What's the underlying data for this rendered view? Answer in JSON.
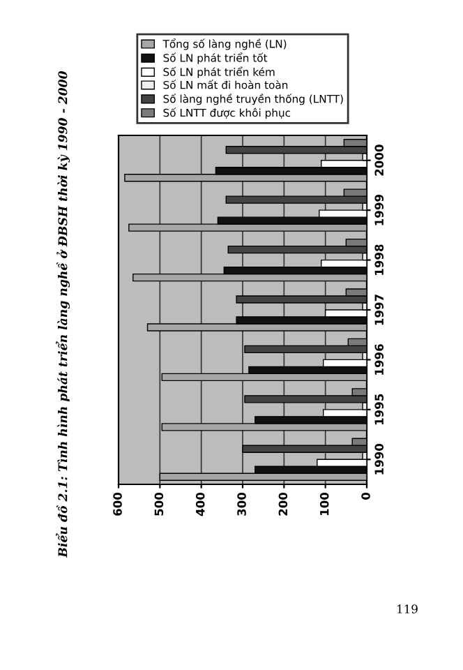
{
  "chart_data": {
    "type": "bar",
    "orientation": "horizontal",
    "title": "Biểu đồ 2.1: Tình hình phát triển làng nghề ở ĐBSH thời kỳ 1990 - 2000",
    "categories": [
      "2000",
      "1999",
      "1998",
      "1997",
      "1996",
      "1995",
      "1990"
    ],
    "series": [
      {
        "name": "Tổng số làng nghề (LN)",
        "color": "#a6a6a6",
        "values": [
          585,
          575,
          565,
          530,
          495,
          495,
          500
        ]
      },
      {
        "name": "Số LN phát triển tốt",
        "color": "#111111",
        "values": [
          365,
          360,
          345,
          315,
          285,
          270,
          270
        ]
      },
      {
        "name": "Số LN phát triển kém",
        "color": "#ffffff",
        "values": [
          110,
          115,
          110,
          100,
          105,
          105,
          120
        ]
      },
      {
        "name": "Số LN mất đi hoàn toàn",
        "color": "#eeeeee",
        "values": [
          10,
          10,
          10,
          10,
          10,
          10,
          10
        ]
      },
      {
        "name": "Số làng nghề truyền thống (LNTT)",
        "color": "#444444",
        "values": [
          340,
          340,
          335,
          315,
          295,
          295,
          300
        ]
      },
      {
        "name": "Số LNTT được khôi phục",
        "color": "#7a7a7a",
        "values": [
          55,
          55,
          50,
          50,
          45,
          35,
          35
        ]
      }
    ],
    "xlim": [
      600,
      0
    ],
    "xticks": [
      0,
      100,
      200,
      300,
      400,
      500,
      600
    ],
    "grid": "x",
    "legend": "top",
    "annotations": [
      "119"
    ]
  }
}
